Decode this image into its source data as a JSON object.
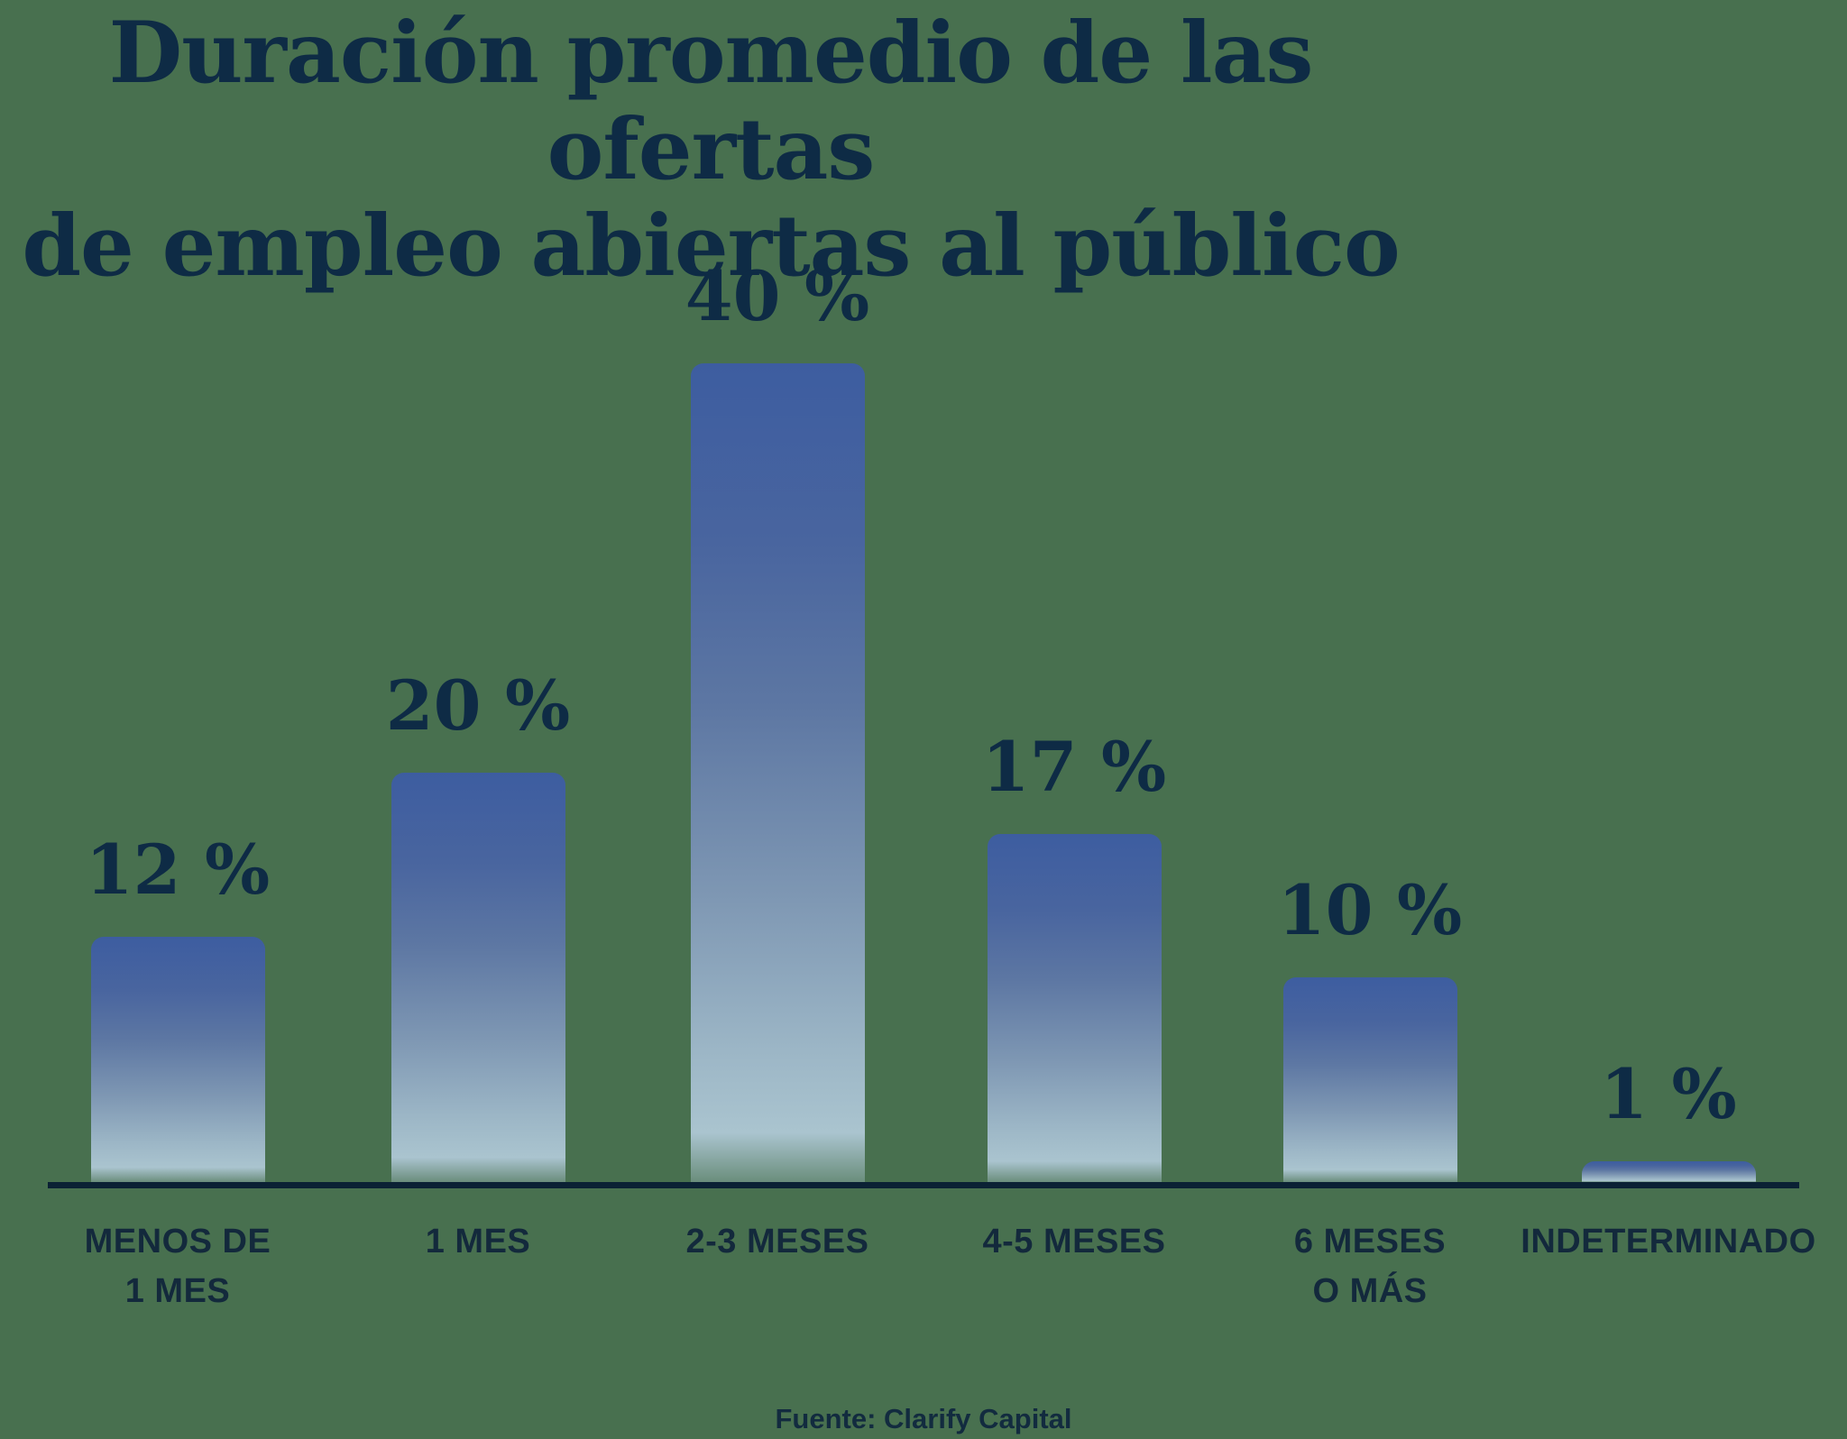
{
  "chart_data": {
    "type": "bar",
    "title": "Duración promedio de las ofertas de empleo abiertas al público",
    "title_lines": [
      "Duración promedio de las ofertas",
      "de empleo abiertas al público"
    ],
    "categories": [
      "MENOS DE\n1 MES",
      "1 MES",
      "2-3 MESES",
      "4-5 MESES",
      "6 MESES\nO MÁS",
      "INDETERMINADO"
    ],
    "values": [
      12,
      20,
      40,
      17,
      10,
      1
    ],
    "value_labels": [
      "12 %",
      "20 %",
      "40 %",
      "17 %",
      "10 %",
      "1 %"
    ],
    "unit": "%",
    "ylim": [
      0,
      40
    ],
    "grid": false,
    "legend": false,
    "source": "Fuente: Clarify Capital",
    "colors": {
      "background": "#48704f",
      "bar_gradient_top": "#3d5da0",
      "bar_gradient_bottom": "#aac4cf",
      "text": "#0e2b45",
      "baseline": "#0b2134"
    }
  }
}
